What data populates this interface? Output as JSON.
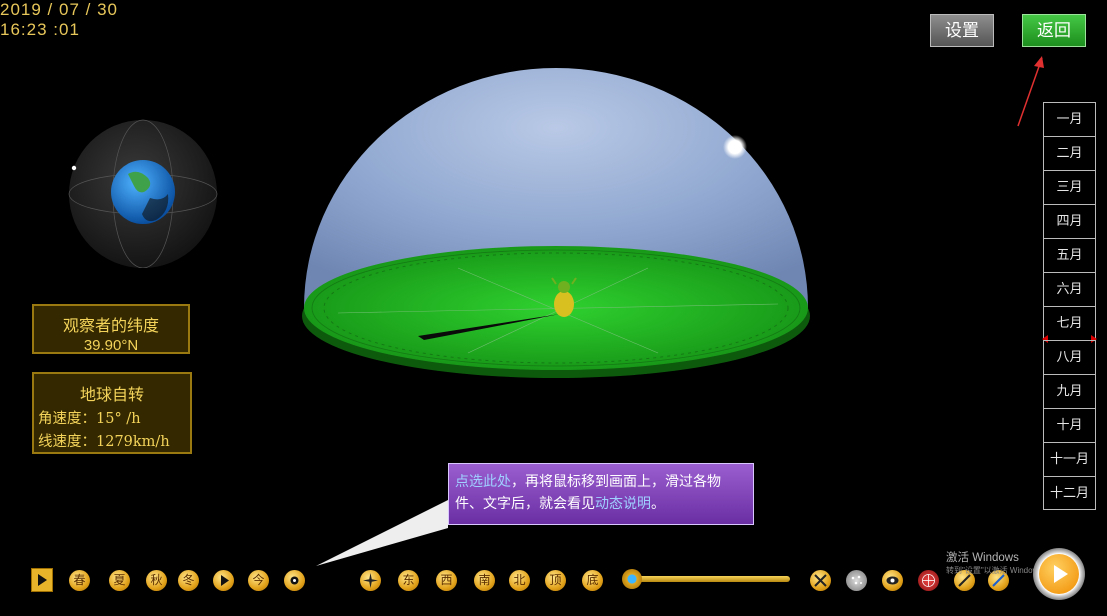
{
  "datetime": {
    "date": "2019 / 07 / 30",
    "time": "16:23 :01"
  },
  "latitude": {
    "title": "观察者的纬度",
    "value": "39.90°N"
  },
  "rotation": {
    "title": "地球自转",
    "angular": "角速度：15° /h",
    "linear": "线速度：1279km/h"
  },
  "top_buttons": {
    "settings": "设置",
    "back": "返回"
  },
  "months": [
    "一月",
    "二月",
    "三月",
    "四月",
    "五月",
    "六月",
    "七月",
    "八月",
    "九月",
    "十月",
    "十一月",
    "十二月"
  ],
  "active_month": "七月",
  "tooltip": {
    "part1": "点选此处",
    "part2": "，再将鼠标移到画面上，滑过各物件、文字后，就会看见",
    "part3": "动态说明",
    "part4": "。"
  },
  "season_buttons": [
    "春",
    "夏",
    "秋",
    "冬"
  ],
  "today_button": "今",
  "direction_buttons": [
    "东",
    "西",
    "南",
    "北",
    "顶",
    "底"
  ],
  "watermark": {
    "line1": "激活 Windows",
    "line2": "转到\"设置\"以激活 Windows。"
  },
  "colors": {
    "accent_gold": "#e8c75a",
    "back_green": "#2da52d",
    "dome_plane": "#1ea81e"
  },
  "icons": [
    "earth-globe-icon",
    "sun-icon",
    "tree-icon",
    "play-icon",
    "target-icon",
    "compass-rose-icon",
    "shield-icon",
    "star-cluster-icon",
    "eye-icon",
    "grid-globe-icon",
    "telescope-icon"
  ]
}
